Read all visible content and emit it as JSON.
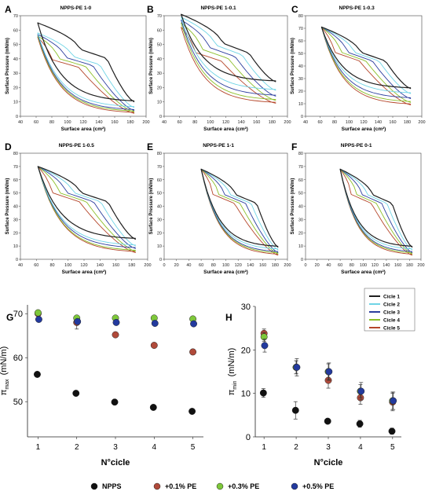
{
  "colors": {
    "axis": "#444444",
    "cycle_1": "#1f1f1f",
    "cycle_2": "#6fd4e6",
    "cycle_3": "#2c3e9e",
    "cycle_4": "#8cbf2a",
    "cycle_5": "#b5462a",
    "npps": "#111111",
    "pe01": "#b04a3a",
    "pe03": "#7ec83a",
    "pe05": "#233a9e"
  },
  "legends": {
    "cycles": [
      "Cicle 1",
      "Cicle 2",
      "Cicle 3",
      "Cicle 4",
      "Cicle 5"
    ],
    "bottom": [
      "NPPS",
      "+0.1% PE",
      "+0.3% PE",
      "+0.5% PE"
    ]
  },
  "chart_data": [
    {
      "panel": "A",
      "type": "line",
      "title": "NPPS-PE 1-0",
      "xlabel": "Surface area (cm²)",
      "ylabel": "Surface Pressure (mN/m)",
      "xlim": [
        40,
        200
      ],
      "ylim": [
        0,
        70
      ],
      "xticks": [
        "40",
        "60",
        "80",
        "100",
        "120",
        "140",
        "160",
        "180",
        "200"
      ],
      "yticks": [
        "0",
        "10",
        "20",
        "30",
        "40",
        "50",
        "60",
        "70"
      ],
      "max_pressure": [
        65,
        58,
        57,
        56,
        55
      ],
      "min_pressure": [
        10,
        6,
        4,
        3,
        2
      ],
      "legend": "Cicle 1 – Cicle 5 (right)"
    },
    {
      "panel": "B",
      "type": "line",
      "title": "NPPS-PE 1-0.1",
      "xlabel": "Surface area (cm²)",
      "ylabel": "Surface Pressure (mN/m)",
      "xlim": [
        40,
        200
      ],
      "ylim": [
        0,
        70
      ],
      "xticks": [
        "40",
        "60",
        "80",
        "100",
        "120",
        "140",
        "160",
        "180",
        "200"
      ],
      "yticks": [
        "0",
        "10",
        "20",
        "30",
        "40",
        "50",
        "60",
        "70"
      ],
      "max_pressure": [
        71,
        69,
        67,
        65,
        62
      ],
      "min_pressure": [
        24,
        18,
        14,
        11,
        9
      ]
    },
    {
      "panel": "C",
      "type": "line",
      "title": "NPPS-PE 1-0.3",
      "xlabel": "Surface area (cm²)",
      "ylabel": "Surface Pressure (mN/m)",
      "xlim": [
        40,
        200
      ],
      "ylim": [
        0,
        80
      ],
      "xticks": [
        "40",
        "60",
        "80",
        "100",
        "120",
        "140",
        "160",
        "180",
        "200"
      ],
      "yticks": [
        "0",
        "10",
        "20",
        "30",
        "40",
        "50",
        "60",
        "70",
        "80"
      ],
      "max_pressure": [
        71,
        71,
        71,
        71,
        71
      ],
      "min_pressure": [
        22,
        18,
        14,
        11,
        9
      ]
    },
    {
      "panel": "D",
      "type": "line",
      "title": "NPPS-PE 1-0.5",
      "xlabel": "Surface area (cm²)",
      "ylabel": "Surface Pressure (mN/m)",
      "xlim": [
        40,
        200
      ],
      "ylim": [
        0,
        80
      ],
      "xticks": [
        "40",
        "60",
        "80",
        "100",
        "120",
        "140",
        "160",
        "180",
        "200"
      ],
      "yticks": [
        "0",
        "10",
        "20",
        "30",
        "40",
        "50",
        "60",
        "70",
        "80"
      ],
      "max_pressure": [
        70,
        70,
        70,
        70,
        70
      ],
      "min_pressure": [
        15,
        10,
        8,
        6,
        5
      ]
    },
    {
      "panel": "E",
      "type": "line",
      "title": "NPPS-PE 1-1",
      "xlabel": "Surface area (cm²)",
      "ylabel": "Surface Pressure (mN/m)",
      "xlim": [
        0,
        200
      ],
      "ylim": [
        0,
        80
      ],
      "xticks": [
        "0",
        "20",
        "40",
        "60",
        "80",
        "100",
        "120",
        "140",
        "160",
        "180",
        "200"
      ],
      "yticks": [
        "0",
        "10",
        "20",
        "30",
        "40",
        "50",
        "60",
        "70",
        "80"
      ],
      "max_pressure": [
        68,
        68,
        68,
        68,
        68
      ],
      "min_pressure": [
        9,
        7,
        5,
        4,
        3
      ]
    },
    {
      "panel": "F",
      "type": "line",
      "title": "NPPS-PE 0-1",
      "xlabel": "Surface area (cm²)",
      "ylabel": "Surface Pressure (mN/m)",
      "xlim": [
        0,
        200
      ],
      "ylim": [
        0,
        80
      ],
      "xticks": [
        "0",
        "20",
        "40",
        "60",
        "80",
        "100",
        "120",
        "140",
        "160",
        "180",
        "200"
      ],
      "yticks": [
        "0",
        "10",
        "20",
        "30",
        "40",
        "50",
        "60",
        "70",
        "80"
      ],
      "max_pressure": [
        68,
        68,
        68,
        68,
        68
      ],
      "min_pressure": [
        9,
        7,
        5,
        4,
        3
      ]
    },
    {
      "panel": "G",
      "type": "scatter",
      "xlabel": "N°cicle",
      "ylabel": "π_max (mN/m)",
      "ylabel_main": "π",
      "ylabel_sub": "max",
      "ylabel_unit": "(mN/m)",
      "x": [
        1,
        2,
        3,
        4,
        5
      ],
      "xlim": [
        1,
        5
      ],
      "ylim": [
        42,
        72
      ],
      "xticks": [
        "1",
        "2",
        "3",
        "4",
        "5"
      ],
      "yticks": [
        "50",
        "60",
        "70"
      ],
      "series": [
        {
          "name": "NPPS",
          "values": [
            56.2,
            51.9,
            49.9,
            48.7,
            47.8
          ],
          "err": [
            0.5,
            0.3,
            0.3,
            0.3,
            0.5
          ]
        },
        {
          "name": "+0.1% PE",
          "values": [
            70.0,
            68.0,
            65.2,
            62.8,
            61.3
          ],
          "err": [
            0.5,
            1.5,
            0.4,
            0.3,
            0.6
          ]
        },
        {
          "name": "+0.3% PE",
          "values": [
            70.2,
            69.0,
            69.0,
            69.0,
            68.8
          ],
          "err": [
            0.3,
            0.4,
            0.3,
            0.2,
            0.3
          ]
        },
        {
          "name": "+0.5% PE",
          "values": [
            68.7,
            68.2,
            68.0,
            67.8,
            67.7
          ],
          "err": [
            0.4,
            0.4,
            0.3,
            0.2,
            0.2
          ]
        }
      ]
    },
    {
      "panel": "H",
      "type": "scatter",
      "xlabel": "N°cicle",
      "ylabel": "π_min (mN/m)",
      "ylabel_main": "π",
      "ylabel_sub": "min",
      "ylabel_unit": "(mN/m)",
      "x": [
        1,
        2,
        3,
        4,
        5
      ],
      "xlim": [
        1,
        5
      ],
      "ylim": [
        0,
        30
      ],
      "xticks": [
        "1",
        "2",
        "3",
        "4",
        "5"
      ],
      "yticks": [
        "0",
        "10",
        "20",
        "30"
      ],
      "series": [
        {
          "name": "NPPS",
          "values": [
            10.1,
            6.1,
            3.6,
            3.0,
            1.3
          ],
          "err": [
            1.0,
            2.0,
            0.5,
            0.8,
            0.7
          ]
        },
        {
          "name": "+0.1% PE",
          "values": [
            23.8,
            16.0,
            13.0,
            9.0,
            8.0
          ],
          "err": [
            1.0,
            1.5,
            1.8,
            1.5,
            2.0
          ]
        },
        {
          "name": "+0.3% PE",
          "values": [
            23.0,
            16.0,
            15.0,
            10.5,
            8.3
          ],
          "err": [
            1.0,
            1.5,
            1.8,
            1.5,
            2.0
          ]
        },
        {
          "name": "+0.5% PE",
          "values": [
            21.0,
            16.0,
            15.0,
            10.5,
            8.3
          ],
          "err": [
            1.5,
            2.0,
            2.0,
            2.0,
            2.0
          ]
        }
      ]
    }
  ]
}
